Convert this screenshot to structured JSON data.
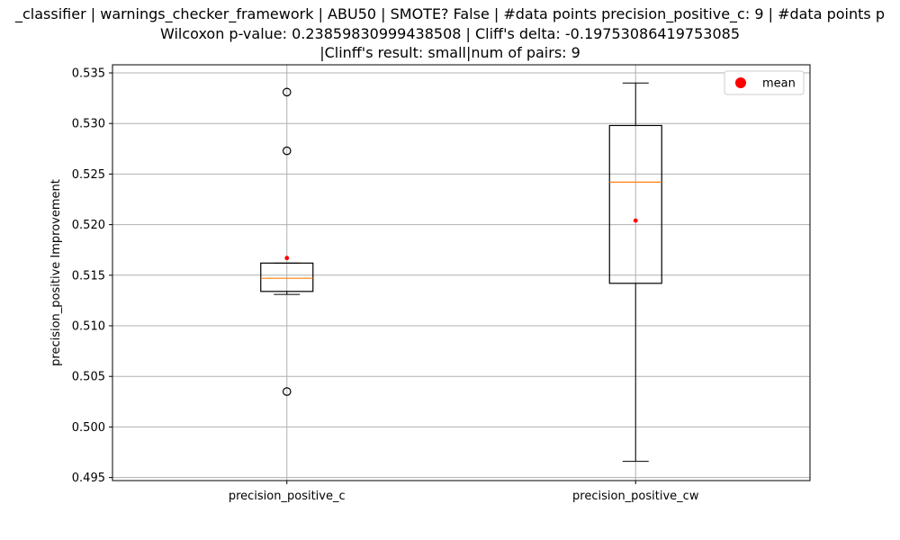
{
  "chart_data": {
    "type": "box",
    "title_lines": [
      "_classifier | warnings_checker_framework | ABU50 | SMOTE? False | #data points precision_positive_c: 9 | #data points p",
      "Wilcoxon p-value: 0.23859830999438508 | Cliff's delta: -0.19753086419753085",
      "|Clinff's result: small|num of pairs: 9"
    ],
    "ylabel": "precision_positive Improvement",
    "xlabel": "",
    "ylim": [
      0.4947,
      0.5358
    ],
    "yticks": [
      0.495,
      0.5,
      0.505,
      0.51,
      0.515,
      0.52,
      0.525,
      0.53,
      0.535
    ],
    "ytick_labels": [
      "0.495",
      "0.500",
      "0.505",
      "0.510",
      "0.515",
      "0.520",
      "0.525",
      "0.530",
      "0.535"
    ],
    "grid": true,
    "legend": {
      "position": "top-right",
      "entries": [
        {
          "label": "mean",
          "color": "#ff0000",
          "marker": "circle"
        }
      ]
    },
    "colors": {
      "box": "#000000",
      "median": "#ff7f0e",
      "mean": "#ff0000",
      "grid": "#b0b0b0"
    },
    "categories": [
      "precision_positive_c",
      "precision_positive_cw"
    ],
    "boxes": [
      {
        "name": "precision_positive_c",
        "whisker_low": 0.5131,
        "q1": 0.5134,
        "median": 0.5147,
        "q3": 0.5162,
        "whisker_high": 0.5162,
        "mean": 0.5167,
        "outliers": [
          0.5331,
          0.5273,
          0.5035
        ]
      },
      {
        "name": "precision_positive_cw",
        "whisker_low": 0.4966,
        "q1": 0.5142,
        "median": 0.5242,
        "q3": 0.5298,
        "whisker_high": 0.534,
        "mean": 0.5204,
        "outliers": []
      }
    ]
  }
}
